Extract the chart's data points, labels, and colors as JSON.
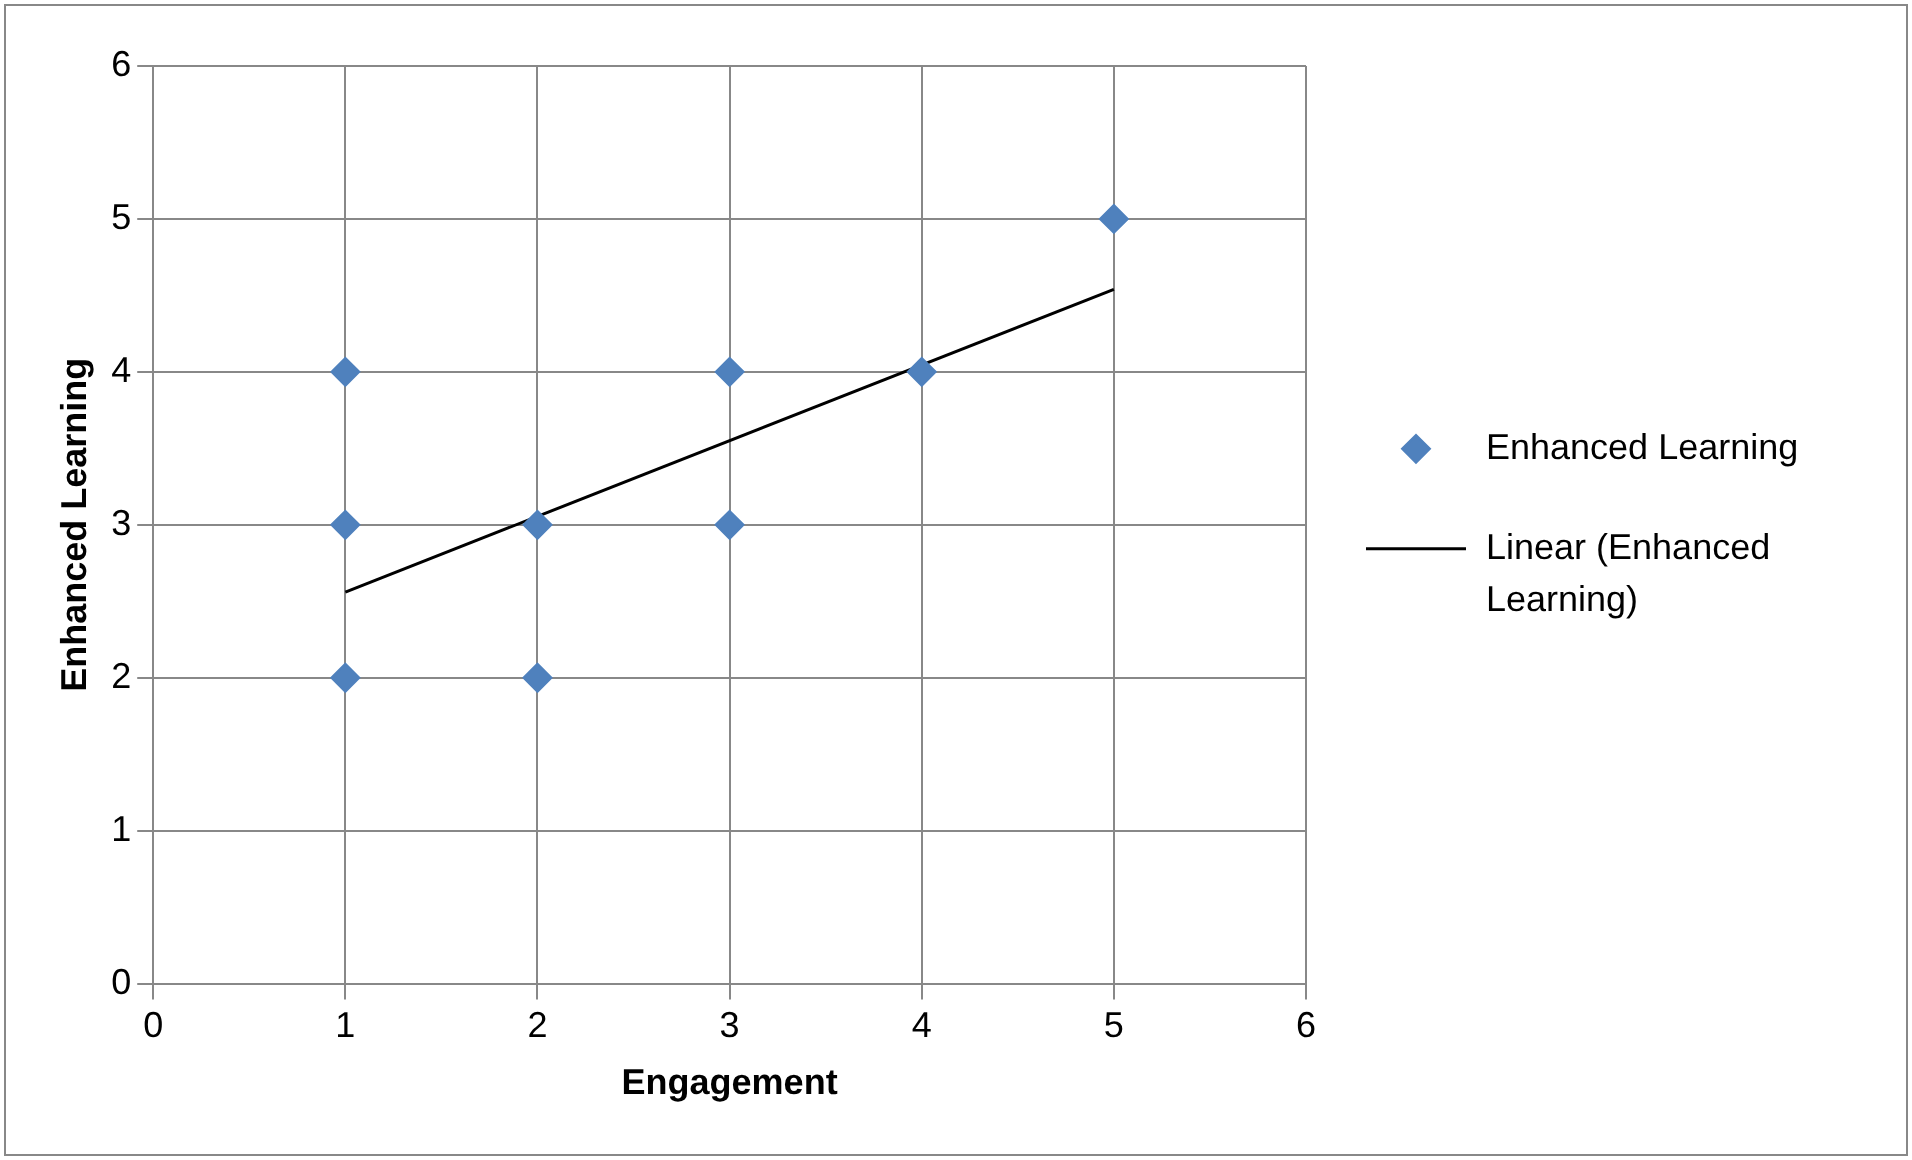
{
  "chart_data": {
    "type": "scatter",
    "xlabel": "Engagement",
    "ylabel": "Enhanced Learning",
    "series": [
      {
        "name": "Enhanced Learning",
        "color": "#4f81bd",
        "x": [
          1,
          1,
          1,
          2,
          2,
          3,
          3,
          4,
          5
        ],
        "values": [
          4,
          3,
          2,
          3,
          2,
          4,
          3,
          4,
          5
        ]
      },
      {
        "name": "Linear (Enhanced Learning)",
        "type": "line",
        "color": "#000000",
        "marker": "none",
        "x": [
          1,
          5
        ],
        "values": [
          2.56,
          4.54
        ]
      }
    ],
    "marker": "diamond",
    "xlim": [
      0,
      6
    ],
    "ylim": [
      0,
      6
    ],
    "xticks": [
      0,
      1,
      2,
      3,
      4,
      5,
      6
    ],
    "yticks": [
      0,
      1,
      2,
      3,
      4,
      5,
      6
    ],
    "grid": true,
    "legend": "right"
  }
}
